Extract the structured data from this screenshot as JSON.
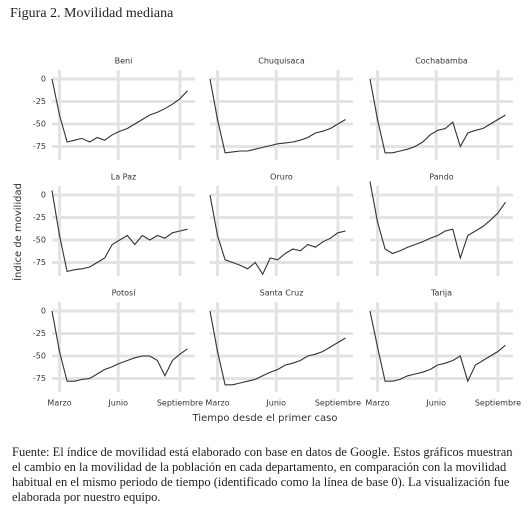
{
  "chart_data": {
    "type": "line",
    "title": "Figura 2. Movilidad mediana",
    "xlabel": "Tiempo desde el primer caso",
    "ylabel": "Índice de movilidad",
    "x": [
      0,
      10,
      20,
      30,
      40,
      50,
      60,
      70,
      80,
      90,
      100,
      110,
      120,
      130,
      140,
      150,
      160,
      170,
      180
    ],
    "xlim": [
      0,
      190
    ],
    "xticks": [
      {
        "value": 10,
        "label": "Marzo"
      },
      {
        "value": 88,
        "label": "Junio"
      },
      {
        "value": 170,
        "label": "Septiembre"
      }
    ],
    "ylim": [
      -90,
      10
    ],
    "yticks": [
      0,
      -25,
      -50,
      -75
    ],
    "grid": true,
    "color": "#333333",
    "series": [
      {
        "name": "Beni",
        "values": [
          0,
          -40,
          -70,
          -68,
          -66,
          -70,
          -65,
          -68,
          -62,
          -58,
          -55,
          -50,
          -45,
          -40,
          -37,
          -33,
          -28,
          -22,
          -13
        ]
      },
      {
        "name": "Chuquisaca",
        "values": [
          0,
          -45,
          -82,
          -81,
          -80,
          -80,
          -78,
          -76,
          -74,
          -72,
          -71,
          -70,
          -68,
          -65,
          -60,
          -58,
          -55,
          -50,
          -45
        ]
      },
      {
        "name": "Cochabamba",
        "values": [
          0,
          -45,
          -82,
          -82,
          -80,
          -78,
          -75,
          -70,
          -62,
          -57,
          -55,
          -48,
          -75,
          -60,
          -57,
          -55,
          -50,
          -45,
          -40
        ]
      },
      {
        "name": "La Paz",
        "values": [
          5,
          -45,
          -85,
          -83,
          -82,
          -80,
          -75,
          -70,
          -55,
          -50,
          -45,
          -55,
          -45,
          -50,
          -45,
          -48,
          -42,
          -40,
          -38
        ]
      },
      {
        "name": "Oruro",
        "values": [
          0,
          -45,
          -72,
          -75,
          -78,
          -82,
          -75,
          -88,
          -70,
          -72,
          -65,
          -60,
          -62,
          -55,
          -58,
          -52,
          -48,
          -42,
          -40
        ]
      },
      {
        "name": "Pando",
        "values": [
          15,
          -30,
          -60,
          -65,
          -62,
          -58,
          -55,
          -52,
          -48,
          -45,
          -40,
          -38,
          -70,
          -45,
          -40,
          -35,
          -28,
          -20,
          -8
        ]
      },
      {
        "name": "Potosí",
        "values": [
          0,
          -45,
          -78,
          -78,
          -76,
          -75,
          -70,
          -65,
          -62,
          -58,
          -55,
          -52,
          -50,
          -50,
          -55,
          -72,
          -55,
          -48,
          -42
        ]
      },
      {
        "name": "Santa Cruz",
        "values": [
          0,
          -45,
          -82,
          -82,
          -80,
          -78,
          -76,
          -72,
          -68,
          -65,
          -60,
          -58,
          -55,
          -50,
          -48,
          -45,
          -40,
          -35,
          -30
        ]
      },
      {
        "name": "Tarija",
        "values": [
          0,
          -40,
          -78,
          -78,
          -76,
          -72,
          -70,
          -68,
          -65,
          -60,
          -58,
          -55,
          -50,
          -78,
          -60,
          -55,
          -50,
          -45,
          -38
        ]
      }
    ]
  },
  "caption": "Fuente: El índice de movilidad está elaborado con base en datos de Google. Estos gráficos muestran el cambio en la movilidad de la población en cada departamento, en comparación con la movilidad habitual en el mismo periodo de tiempo (identificado como la línea de base 0). La visualización fue elaborada por nuestro equipo."
}
